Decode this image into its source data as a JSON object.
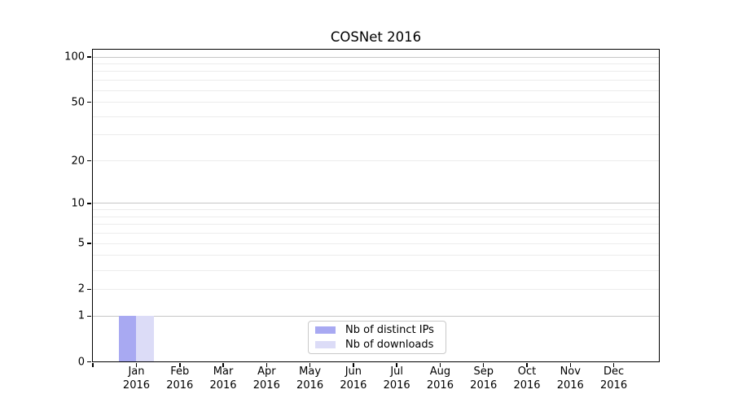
{
  "chart_data": {
    "type": "bar",
    "title": "COSNet 2016",
    "year_label": "2016",
    "categories": [
      "Jan",
      "Feb",
      "Mar",
      "Apr",
      "May",
      "Jun",
      "Jul",
      "Aug",
      "Sep",
      "Oct",
      "Nov",
      "Dec"
    ],
    "series": [
      {
        "name": "Nb of distinct IPs",
        "color": "#a8a9f2",
        "values": [
          1,
          0,
          0,
          0,
          0,
          0,
          0,
          0,
          0,
          0,
          0,
          0
        ]
      },
      {
        "name": "Nb of downloads",
        "color": "#dcdcf7",
        "values": [
          1,
          0,
          0,
          0,
          0,
          0,
          0,
          0,
          0,
          0,
          0,
          0
        ]
      }
    ],
    "yscale": "log1p",
    "ylim": [
      0,
      114
    ],
    "ytick_values": [
      100,
      50,
      20,
      10,
      5,
      2,
      1,
      0
    ],
    "ytick_labels": [
      "100",
      "50",
      "20",
      "10",
      "5",
      "2",
      "1",
      "0"
    ],
    "major_gridline_values": [
      1,
      10,
      100
    ],
    "minor_gridline_values": [
      2,
      3,
      4,
      5,
      6,
      7,
      8,
      9,
      20,
      30,
      40,
      50,
      60,
      70,
      80,
      90
    ],
    "grid": "horizontal",
    "legend_position": "bottom-center-inside",
    "colors": {
      "minor_grid": "#ececec",
      "major_grid": "#c6c6c6",
      "axis": "#000000",
      "text": "#000000"
    }
  }
}
